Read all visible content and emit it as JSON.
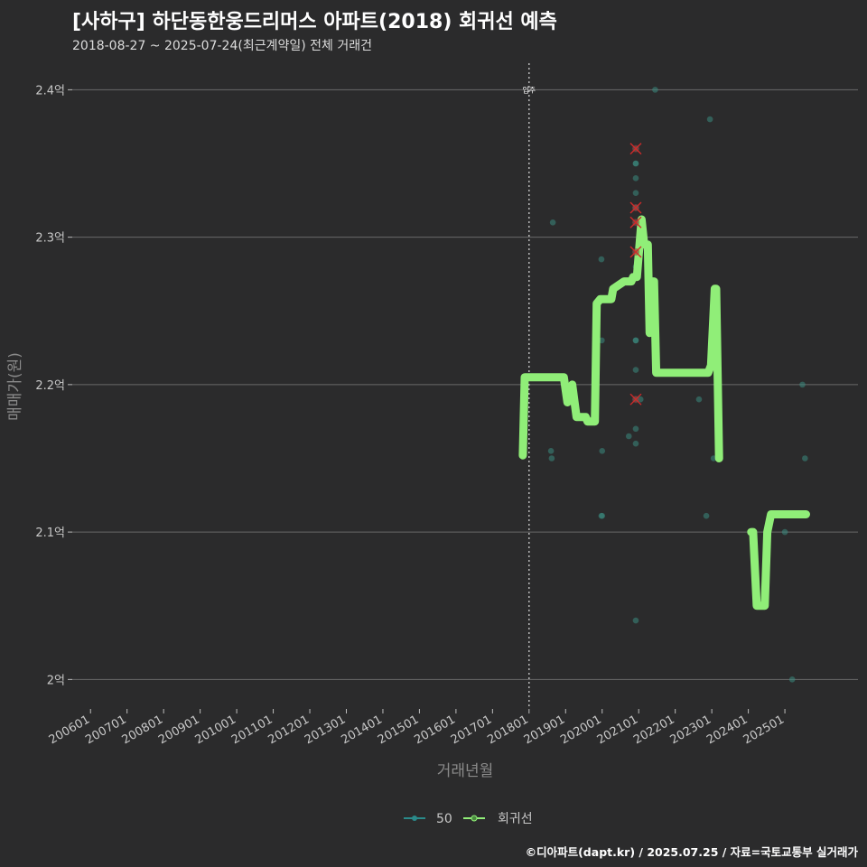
{
  "chart_data": {
    "type": "scatter",
    "title": "[사하구] 하단동한웅드리머스 아파트(2018) 회귀선 예측",
    "subtitle": "2018-08-27 ~ 2025-07-24(최근계약일) 전체 거래건",
    "xlabel": "거래년월",
    "ylabel": "매매가(원)",
    "footer": "©디아파트(dapt.kr) / 2025.07.25 / 자료=국토교통부 실거래가",
    "x_range": [
      2005.5,
      2027.0
    ],
    "ylim": [
      1.98,
      2.418
    ],
    "x_ticks": [
      {
        "label": "200601",
        "year": 2006
      },
      {
        "label": "200701",
        "year": 2007
      },
      {
        "label": "200801",
        "year": 2008
      },
      {
        "label": "200901",
        "year": 2009
      },
      {
        "label": "201001",
        "year": 2010
      },
      {
        "label": "201101",
        "year": 2011
      },
      {
        "label": "201201",
        "year": 2012
      },
      {
        "label": "201301",
        "year": 2013
      },
      {
        "label": "201401",
        "year": 2014
      },
      {
        "label": "201501",
        "year": 2015
      },
      {
        "label": "201601",
        "year": 2016
      },
      {
        "label": "201701",
        "year": 2017
      },
      {
        "label": "201801",
        "year": 2018
      },
      {
        "label": "201901",
        "year": 2019
      },
      {
        "label": "202001",
        "year": 2020
      },
      {
        "label": "202101",
        "year": 2021
      },
      {
        "label": "202201",
        "year": 2022
      },
      {
        "label": "202301",
        "year": 2023
      },
      {
        "label": "202401",
        "year": 2024
      },
      {
        "label": "202501",
        "year": 2025
      }
    ],
    "y_ticks": [
      {
        "label": "2억",
        "value": 2.0
      },
      {
        "label": "2.1억",
        "value": 2.1
      },
      {
        "label": "2.2억",
        "value": 2.2
      },
      {
        "label": "2.3억",
        "value": 2.3
      },
      {
        "label": "2.4억",
        "value": 2.4
      }
    ],
    "annotation": {
      "label": "입주",
      "year": 2018.0
    },
    "legend": [
      {
        "name": "50",
        "color": "#2a8a8a"
      },
      {
        "name": "회귀선",
        "color": "#90ee78"
      }
    ],
    "series": [
      {
        "name": "50",
        "color": "#3a8a80",
        "points": [
          {
            "x": 2018.6,
            "y": 2.155
          },
          {
            "x": 2018.62,
            "y": 2.15
          },
          {
            "x": 2018.65,
            "y": 2.31
          },
          {
            "x": 2019.98,
            "y": 2.285
          },
          {
            "x": 2019.99,
            "y": 2.23
          },
          {
            "x": 2020.0,
            "y": 2.155
          },
          {
            "x": 2019.98,
            "y": 2.111
          },
          {
            "x": 2020.0,
            "y": 2.111
          },
          {
            "x": 2020.73,
            "y": 2.165
          },
          {
            "x": 2020.92,
            "y": 2.36
          },
          {
            "x": 2020.92,
            "y": 2.35
          },
          {
            "x": 2020.92,
            "y": 2.35
          },
          {
            "x": 2020.92,
            "y": 2.34
          },
          {
            "x": 2020.92,
            "y": 2.33
          },
          {
            "x": 2020.92,
            "y": 2.32
          },
          {
            "x": 2020.92,
            "y": 2.32
          },
          {
            "x": 2020.92,
            "y": 2.31
          },
          {
            "x": 2020.92,
            "y": 2.29
          },
          {
            "x": 2020.92,
            "y": 2.28
          },
          {
            "x": 2020.92,
            "y": 2.23
          },
          {
            "x": 2020.92,
            "y": 2.23
          },
          {
            "x": 2020.92,
            "y": 2.21
          },
          {
            "x": 2020.92,
            "y": 2.19
          },
          {
            "x": 2020.92,
            "y": 2.17
          },
          {
            "x": 2020.92,
            "y": 2.16
          },
          {
            "x": 2020.92,
            "y": 2.04
          },
          {
            "x": 2021.05,
            "y": 2.19
          },
          {
            "x": 2021.45,
            "y": 2.4
          },
          {
            "x": 2022.65,
            "y": 2.19
          },
          {
            "x": 2022.85,
            "y": 2.111
          },
          {
            "x": 2022.95,
            "y": 2.38
          },
          {
            "x": 2023.05,
            "y": 2.15
          },
          {
            "x": 2025.0,
            "y": 2.1
          },
          {
            "x": 2025.2,
            "y": 2.0
          },
          {
            "x": 2025.48,
            "y": 2.2
          },
          {
            "x": 2025.55,
            "y": 2.15
          }
        ]
      },
      {
        "name": "회귀선",
        "color": "#90ee78",
        "points": [
          {
            "x": 2017.83,
            "y": 2.152
          },
          {
            "x": 2017.88,
            "y": 2.205
          },
          {
            "x": 2018.95,
            "y": 2.205
          },
          {
            "x": 2019.05,
            "y": 2.188
          },
          {
            "x": 2019.18,
            "y": 2.2
          },
          {
            "x": 2019.3,
            "y": 2.178
          },
          {
            "x": 2019.55,
            "y": 2.178
          },
          {
            "x": 2019.6,
            "y": 2.175
          },
          {
            "x": 2019.8,
            "y": 2.175
          },
          {
            "x": 2019.85,
            "y": 2.255
          },
          {
            "x": 2019.95,
            "y": 2.258
          },
          {
            "x": 2020.25,
            "y": 2.258
          },
          {
            "x": 2020.3,
            "y": 2.265
          },
          {
            "x": 2020.6,
            "y": 2.27
          },
          {
            "x": 2020.8,
            "y": 2.27
          },
          {
            "x": 2020.85,
            "y": 2.273
          },
          {
            "x": 2020.95,
            "y": 2.273
          },
          {
            "x": 2021.08,
            "y": 2.312
          },
          {
            "x": 2021.15,
            "y": 2.295
          },
          {
            "x": 2021.25,
            "y": 2.295
          },
          {
            "x": 2021.3,
            "y": 2.235
          },
          {
            "x": 2021.35,
            "y": 2.27
          },
          {
            "x": 2021.42,
            "y": 2.27
          },
          {
            "x": 2021.48,
            "y": 2.208
          },
          {
            "x": 2022.0,
            "y": 2.208
          },
          {
            "x": 2022.5,
            "y": 2.208
          },
          {
            "x": 2022.9,
            "y": 2.208
          },
          {
            "x": 2022.98,
            "y": 2.213
          },
          {
            "x": 2023.08,
            "y": 2.265
          },
          {
            "x": 2023.12,
            "y": 2.265
          },
          {
            "x": 2023.2,
            "y": 2.15
          }
        ]
      },
      {
        "name": "회귀선",
        "color": "#90ee78",
        "points": [
          {
            "x": 2024.08,
            "y": 2.1
          },
          {
            "x": 2024.13,
            "y": 2.1
          },
          {
            "x": 2024.23,
            "y": 2.05
          },
          {
            "x": 2024.45,
            "y": 2.05
          },
          {
            "x": 2024.52,
            "y": 2.1
          },
          {
            "x": 2024.62,
            "y": 2.112
          },
          {
            "x": 2025.58,
            "y": 2.112
          }
        ]
      }
    ],
    "flagged_points": [
      {
        "x": 2020.92,
        "y": 2.36
      },
      {
        "x": 2020.92,
        "y": 2.32
      },
      {
        "x": 2020.92,
        "y": 2.31
      },
      {
        "x": 2020.92,
        "y": 2.29
      },
      {
        "x": 2020.92,
        "y": 2.19
      }
    ]
  }
}
